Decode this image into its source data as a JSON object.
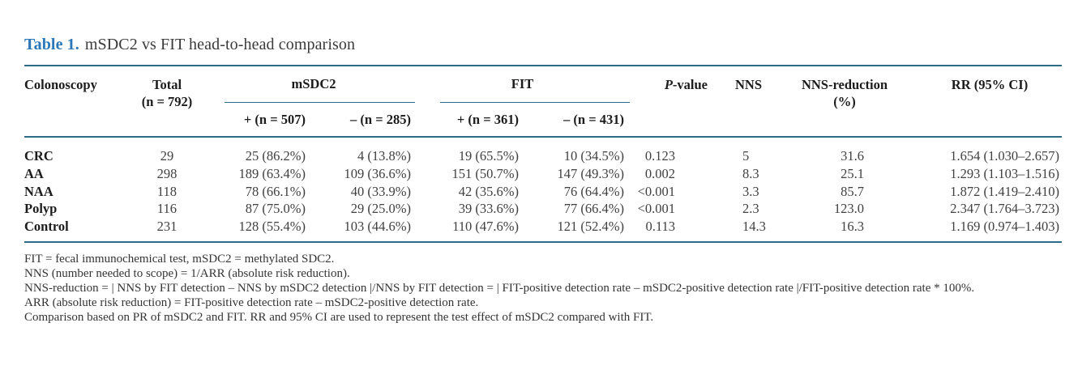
{
  "title": {
    "label": "Table 1.",
    "text": "mSDC2 vs FIT head-to-head comparison"
  },
  "colors": {
    "accent_blue": "#2b77b8",
    "rule_blue": "#2d6b86"
  },
  "table": {
    "header": {
      "colonoscopy": "Colonoscopy",
      "total_line1": "Total",
      "total_line2": "(n = 792)",
      "msdc2_group": "mSDC2",
      "fit_group": "FIT",
      "msdc2_pos": "+ (n = 507)",
      "msdc2_neg": "– (n = 285)",
      "fit_pos": "+ (n = 361)",
      "fit_neg": "– (n = 431)",
      "p_value": "P-value",
      "nns": "NNS",
      "nns_reduction_line1": "NNS-reduction",
      "nns_reduction_line2": "(%)",
      "rr": "RR (95% CI)"
    },
    "rows": [
      {
        "label": "CRC",
        "total": "29",
        "msdc2_pos": "25 (86.2%)",
        "msdc2_neg": "4 (13.8%)",
        "fit_pos": "19 (65.5%)",
        "fit_neg": "10 (34.5%)",
        "p_value": "0.123",
        "nns": "5",
        "nns_reduction": "31.6",
        "rr": "1.654 (1.030–2.657)"
      },
      {
        "label": "AA",
        "total": "298",
        "msdc2_pos": "189 (63.4%)",
        "msdc2_neg": "109 (36.6%)",
        "fit_pos": "151 (50.7%)",
        "fit_neg": "147 (49.3%)",
        "p_value": "0.002",
        "nns": "8.3",
        "nns_reduction": "25.1",
        "rr": "1.293 (1.103–1.516)"
      },
      {
        "label": "NAA",
        "total": "118",
        "msdc2_pos": "78 (66.1%)",
        "msdc2_neg": "40 (33.9%)",
        "fit_pos": "42 (35.6%)",
        "fit_neg": "76 (64.4%)",
        "p_value": "<0.001",
        "nns": "3.3",
        "nns_reduction": "85.7",
        "rr": "1.872 (1.419–2.410)"
      },
      {
        "label": "Polyp",
        "total": "116",
        "msdc2_pos": "87 (75.0%)",
        "msdc2_neg": "29 (25.0%)",
        "fit_pos": "39 (33.6%)",
        "fit_neg": "77 (66.4%)",
        "p_value": "<0.001",
        "nns": "2.3",
        "nns_reduction": "123.0",
        "rr": "2.347 (1.764–3.723)"
      },
      {
        "label": "Control",
        "total": "231",
        "msdc2_pos": "128 (55.4%)",
        "msdc2_neg": "103 (44.6%)",
        "fit_pos": "110 (47.6%)",
        "fit_neg": "121 (52.4%)",
        "p_value": "0.113",
        "nns": "14.3",
        "nns_reduction": "16.3",
        "rr": "1.169 (0.974–1.403)"
      }
    ]
  },
  "footnotes": [
    "FIT = fecal immunochemical test, mSDC2 = methylated SDC2.",
    "NNS (number needed to scope) = 1/ARR (absolute risk reduction).",
    "NNS-reduction = | NNS by FIT detection – NNS by mSDC2 detection |/NNS by FIT detection = | FIT-positive detection rate – mSDC2-positive detection rate |/FIT-positive detection rate * 100%.",
    "ARR (absolute risk reduction) = FIT-positive detection rate – mSDC2-positive detection rate.",
    "Comparison based on PR of mSDC2 and FIT. RR and 95% CI are used to represent the test effect of mSDC2 compared with FIT."
  ]
}
